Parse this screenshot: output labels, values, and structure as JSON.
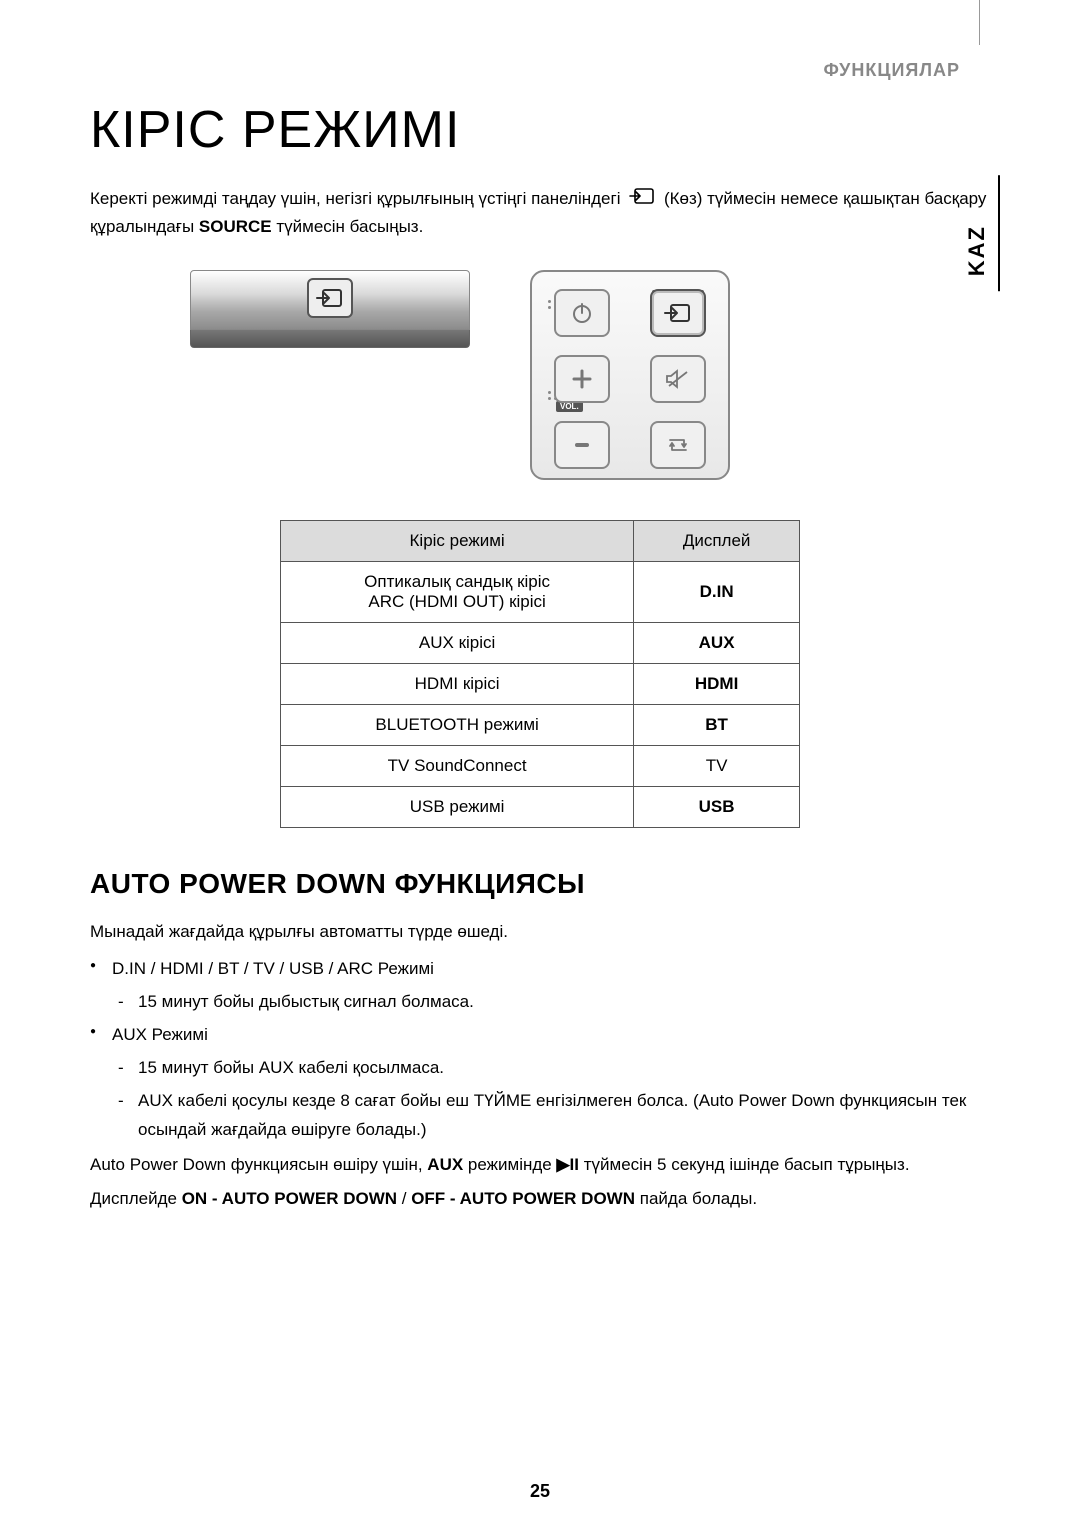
{
  "header": {
    "section_label": "ФУНКЦИЯЛАР",
    "side_tab": "KAZ"
  },
  "title": "КІРІС РЕЖИМІ",
  "intro": {
    "part1": "Керекті режимді таңдау үшін, негізгі құрылғының үстіңгі панеліндегі ",
    "part2": " (Көз) түймесін немесе қашықтан басқару құралындағы ",
    "source_word": "SOURCE",
    "part3": " түймесін басыңыз."
  },
  "remote": {
    "source_badge": "SOURCE",
    "vol_badge": "VOL."
  },
  "table": {
    "headers": [
      "Кіріс режимі",
      "Дисплей"
    ],
    "rows": [
      {
        "mode": "Оптикалық сандық кіріс\nARC (HDMI OUT) кірісі",
        "display": "D.IN",
        "bold": true
      },
      {
        "mode": "AUX кірісі",
        "display": "AUX",
        "bold": true
      },
      {
        "mode": "HDMI кірісі",
        "display": "HDMI",
        "bold": true
      },
      {
        "mode": "BLUETOOTH режимі",
        "display": "BT",
        "bold": true
      },
      {
        "mode": "TV SoundConnect",
        "display": "TV",
        "bold": false
      },
      {
        "mode": "USB режимі",
        "display": "USB",
        "bold": true
      }
    ]
  },
  "section2": {
    "heading": "AUTO POWER DOWN ФУНКЦИЯСЫ",
    "lead": "Мынадай жағдайда құрылғы автоматты түрде өшеді.",
    "bullets": [
      {
        "title": "D.IN / HDMI / BT / TV / USB / ARC Режимі",
        "items": [
          "15 минут бойы дыбыстық сигнал болмаса."
        ]
      },
      {
        "title": "AUX Режимі",
        "items": [
          "15 минут бойы AUX кабелі қосылмаса.",
          "AUX кабелі қосулы кезде 8 сағат бойы еш ТҮЙМЕ енгізілмеген болса. (Auto Power Down функциясын тек осындай жағдайда өшіруге болады.)"
        ]
      }
    ],
    "tail1_a": "Auto Power Down функциясын өшіру үшін, ",
    "tail1_aux": "AUX",
    "tail1_b": " режимінде ",
    "tail1_btn": "▶II",
    "tail1_c": " түймесін 5 секунд ішінде басып тұрыңыз.",
    "tail2_a": "Дисплейде ",
    "tail2_on": "ON - AUTO POWER DOWN",
    "tail2_sep": " / ",
    "tail2_off": "OFF - AUTO POWER DOWN",
    "tail2_b": " пайда болады."
  },
  "page_number": "25",
  "colors": {
    "text": "#000000",
    "muted": "#888888",
    "table_header_bg": "#dcdcdc",
    "border": "#555555"
  }
}
